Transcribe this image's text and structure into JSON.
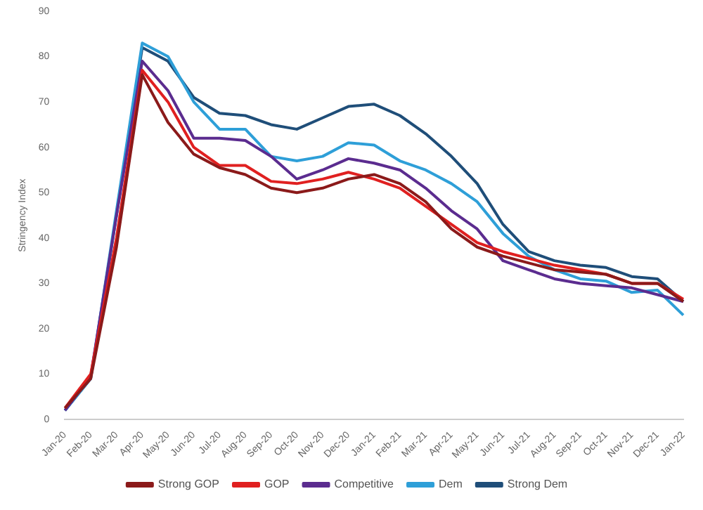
{
  "chart_data": {
    "type": "line",
    "ylabel": "Stringency Index",
    "categories": [
      "Jan-20",
      "Feb-20",
      "Mar-20",
      "Apr-20",
      "May-20",
      "Jun-20",
      "Jul-20",
      "Aug-20",
      "Sep-20",
      "Oct-20",
      "Nov-20",
      "Dec-20",
      "Jan-21",
      "Feb-21",
      "Mar-21",
      "Apr-21",
      "May-21",
      "Jun-21",
      "Jul-21",
      "Aug-21",
      "Sep-21",
      "Oct-21",
      "Nov-21",
      "Dec-21",
      "Jan-22"
    ],
    "series": [
      {
        "name": "Strong GOP",
        "color": "#8b1a1a",
        "values": [
          2.5,
          9,
          38,
          76,
          65.5,
          58.5,
          55.5,
          54,
          51,
          50,
          51,
          53,
          54,
          52,
          48,
          42,
          38,
          36,
          34.5,
          33,
          32.5,
          32,
          30,
          30,
          26
        ]
      },
      {
        "name": "GOP",
        "color": "#e02020",
        "values": [
          2.5,
          10,
          40,
          77,
          70,
          60,
          56,
          56,
          52.5,
          52,
          53,
          54.5,
          53,
          51,
          47,
          43,
          39,
          37,
          35.5,
          34,
          33,
          32,
          30,
          30,
          26.5
        ]
      },
      {
        "name": "Competitive",
        "color": "#5b2c8f",
        "values": [
          2,
          9.5,
          45,
          79,
          72.5,
          62,
          62,
          61.5,
          58,
          53,
          55,
          57.5,
          56.5,
          55,
          51,
          46,
          42,
          35,
          33,
          31,
          30,
          29.5,
          29,
          27.5,
          26
        ]
      },
      {
        "name": "Dem",
        "color": "#2e9fd8",
        "values": [
          2,
          9,
          46,
          83,
          80,
          70,
          64,
          64,
          58,
          57,
          58,
          61,
          60.5,
          57,
          55,
          52,
          48,
          41,
          36,
          33,
          31,
          30.5,
          28,
          28.5,
          23
        ]
      },
      {
        "name": "Strong Dem",
        "color": "#1f4e79",
        "values": [
          2,
          9,
          45,
          82,
          79,
          71,
          67.5,
          67,
          65,
          64,
          66.5,
          69,
          69.5,
          67,
          63,
          58,
          52,
          43,
          37,
          35,
          34,
          33.5,
          31.5,
          31,
          26
        ]
      }
    ],
    "ylim": [
      0,
      90
    ],
    "yticks": [
      0,
      10,
      20,
      30,
      40,
      50,
      60,
      70,
      80,
      90
    ],
    "grid": false,
    "legend": "bottom",
    "marker": "none",
    "line_style": "solid"
  }
}
